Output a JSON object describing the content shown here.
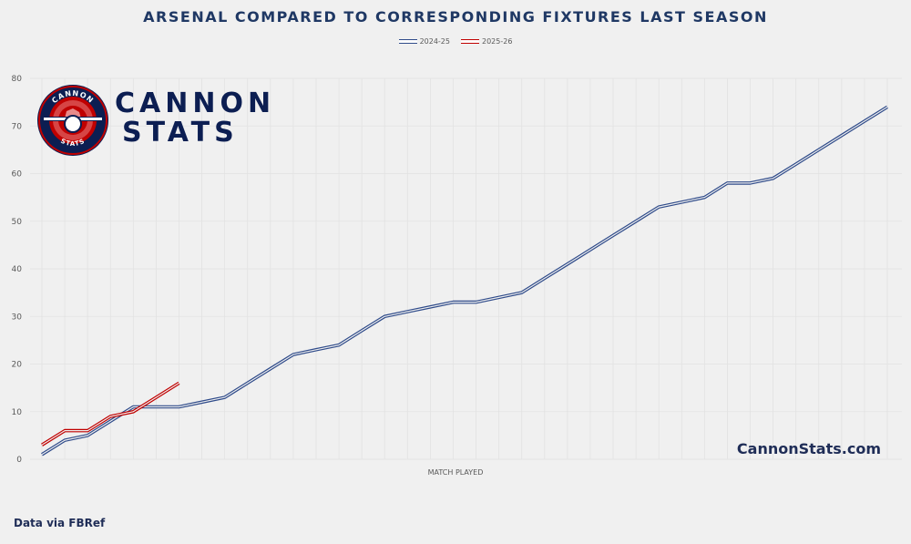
{
  "chart_data": {
    "type": "line",
    "title": "ARSENAL COMPARED TO CORRESPONDING FIXTURES LAST SEASON",
    "xlabel": "MATCH PLAYED",
    "ylabel": "",
    "ylim": [
      0,
      80
    ],
    "yticks": [
      0,
      10,
      20,
      30,
      40,
      50,
      60,
      70,
      80
    ],
    "xlim": [
      1,
      38
    ],
    "grid": true,
    "legend": "top-center",
    "series": [
      {
        "name": "2024-25",
        "color": "#2f4b8a",
        "x": [
          1,
          2,
          3,
          4,
          5,
          6,
          7,
          8,
          9,
          10,
          11,
          12,
          13,
          14,
          15,
          16,
          17,
          18,
          19,
          20,
          21,
          22,
          23,
          24,
          25,
          26,
          27,
          28,
          29,
          30,
          31,
          32,
          33,
          34,
          35,
          36,
          37,
          38
        ],
        "values": [
          1,
          4,
          5,
          8,
          11,
          11,
          11,
          12,
          13,
          16,
          19,
          22,
          23,
          24,
          27,
          30,
          31,
          32,
          33,
          33,
          34,
          35,
          38,
          41,
          44,
          47,
          50,
          53,
          54,
          55,
          58,
          58,
          59,
          62,
          65,
          68,
          71,
          74
        ]
      },
      {
        "name": "2025-26",
        "color": "#c00000",
        "x": [
          1,
          2,
          3,
          4,
          5,
          6,
          7
        ],
        "values": [
          3,
          6,
          6,
          9,
          10,
          13,
          16
        ]
      }
    ]
  },
  "branding": {
    "logo_ring_top": "CANNON",
    "logo_ring_bottom": "STATS",
    "brand_line1": "CANNON",
    "brand_line2": "STATS",
    "site_url": "CannonStats.com",
    "source_note": "Data via FBRef"
  }
}
